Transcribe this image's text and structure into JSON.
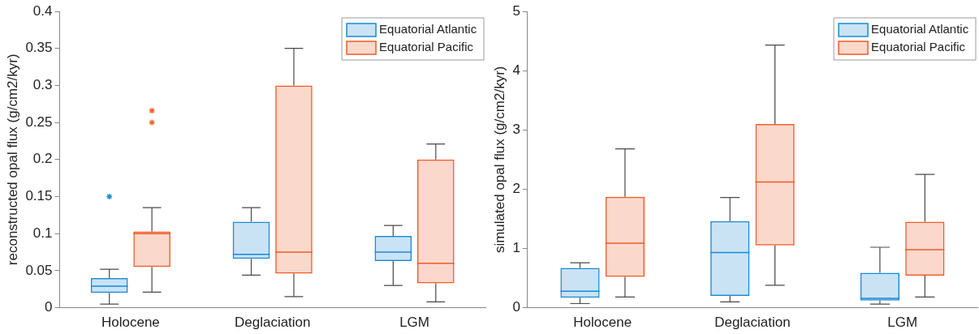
{
  "chart_data": [
    {
      "type": "box",
      "ylabel": "reconstructed opal flux (g/cm2/kyr)",
      "categories": [
        "Holocene",
        "Deglaciation",
        "LGM"
      ],
      "ylim": [
        0,
        0.4
      ],
      "yticks": [
        0,
        0.05,
        0.1,
        0.15,
        0.2,
        0.25,
        0.3,
        0.35,
        0.4
      ],
      "legend": "top right",
      "series": [
        {
          "name": "Equatorial Atlantic",
          "color": "#1b8ad3",
          "boxes": [
            {
              "low": 0.005,
              "q1": 0.02,
              "median": 0.029,
              "q3": 0.04,
              "high": 0.052,
              "outliers": [
                0.15
              ]
            },
            {
              "low": 0.044,
              "q1": 0.066,
              "median": 0.072,
              "q3": 0.116,
              "high": 0.135
            },
            {
              "low": 0.03,
              "q1": 0.063,
              "median": 0.075,
              "q3": 0.097,
              "high": 0.111
            }
          ]
        },
        {
          "name": "Equatorial Pacific",
          "color": "#ef5b25",
          "boxes": [
            {
              "low": 0.021,
              "q1": 0.055,
              "median": 0.1,
              "q3": 0.103,
              "high": 0.135,
              "outliers": [
                0.25,
                0.266
              ]
            },
            {
              "low": 0.015,
              "q1": 0.046,
              "median": 0.075,
              "q3": 0.3,
              "high": 0.35
            },
            {
              "low": 0.008,
              "q1": 0.033,
              "median": 0.06,
              "q3": 0.2,
              "high": 0.221
            }
          ]
        }
      ]
    },
    {
      "type": "box",
      "ylabel": "simulated opal flux (g/cm2/kyr)",
      "categories": [
        "Holocene",
        "Deglaciation",
        "LGM"
      ],
      "ylim": [
        0,
        5
      ],
      "yticks": [
        0,
        1,
        2,
        3,
        4,
        5
      ],
      "legend": "top right",
      "series": [
        {
          "name": "Equatorial Atlantic",
          "color": "#1b8ad3",
          "boxes": [
            {
              "low": 0.07,
              "q1": 0.17,
              "median": 0.28,
              "q3": 0.67,
              "high": 0.76
            },
            {
              "low": 0.1,
              "q1": 0.2,
              "median": 0.93,
              "q3": 1.46,
              "high": 1.86
            },
            {
              "low": 0.06,
              "q1": 0.12,
              "median": 0.16,
              "q3": 0.59,
              "high": 1.02
            }
          ]
        },
        {
          "name": "Equatorial Pacific",
          "color": "#ef5b25",
          "boxes": [
            {
              "low": 0.18,
              "q1": 0.52,
              "median": 1.09,
              "q3": 1.87,
              "high": 2.68
            },
            {
              "low": 0.38,
              "q1": 1.05,
              "median": 2.12,
              "q3": 3.1,
              "high": 4.43
            },
            {
              "low": 0.18,
              "q1": 0.54,
              "median": 0.98,
              "q3": 1.45,
              "high": 2.25
            }
          ]
        }
      ]
    }
  ]
}
